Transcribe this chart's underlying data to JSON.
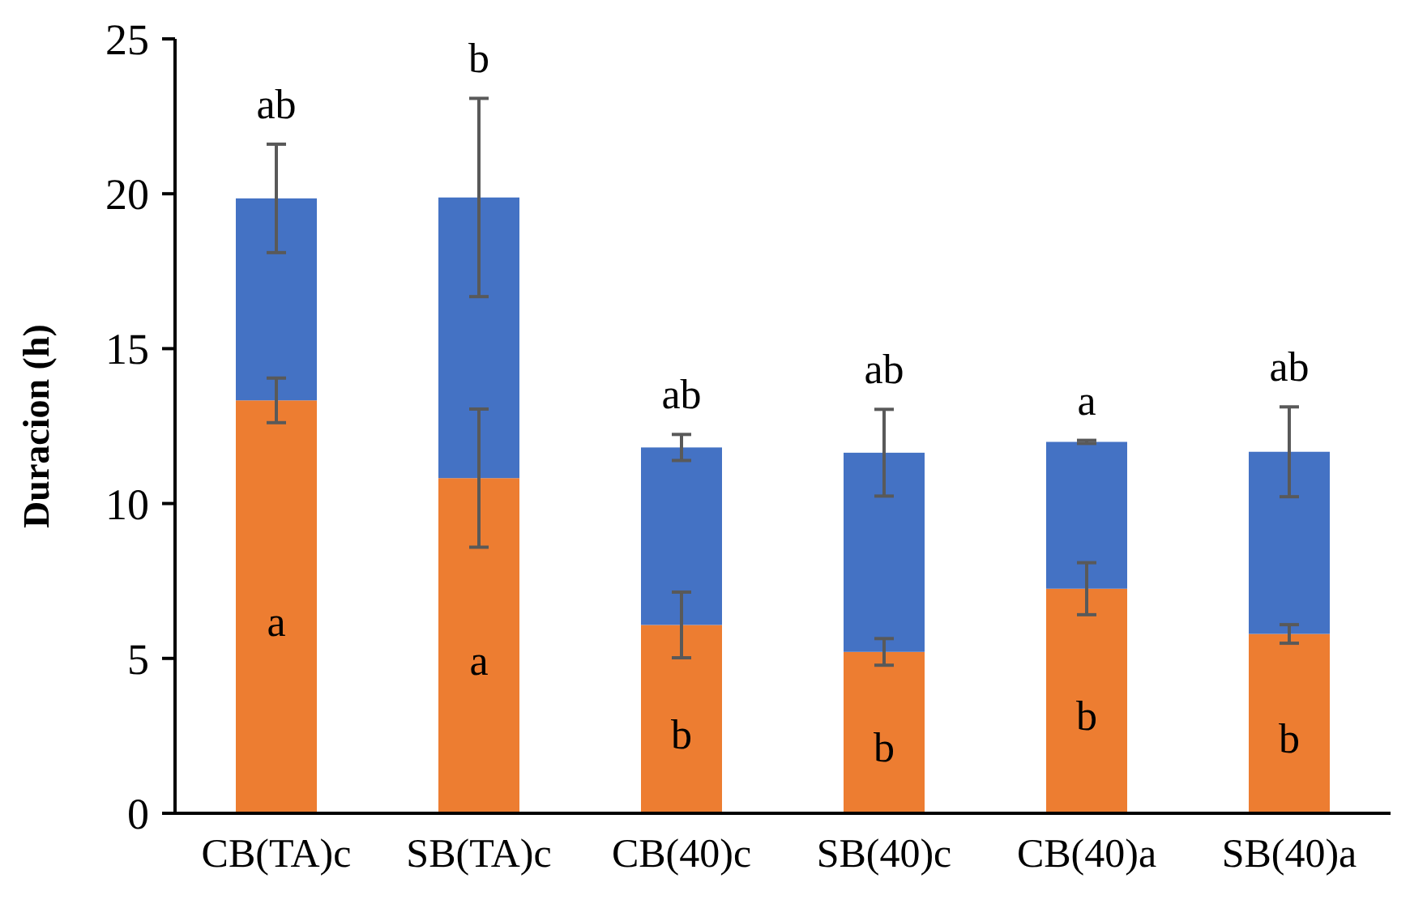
{
  "chart_data": {
    "type": "bar",
    "stacked": true,
    "ylabel": "Duracion (h)",
    "categories": [
      "CB(TA)c",
      "SB(TA)c",
      "CB(40)c",
      "SB(40)c",
      "CB(40)a",
      "SB(40)a"
    ],
    "series": [
      {
        "color": "#ed7d31",
        "values": [
          13.33,
          10.82,
          6.08,
          5.21,
          7.25,
          5.79
        ],
        "errors": [
          0.72,
          2.23,
          1.06,
          0.43,
          0.84,
          0.3
        ],
        "value_labels": [
          "a",
          "a",
          "b",
          "b",
          "b",
          "b"
        ]
      },
      {
        "color": "#4472c4",
        "values": [
          6.52,
          9.06,
          5.73,
          6.43,
          4.74,
          5.88
        ],
        "errors": [
          1.75,
          3.2,
          0.42,
          1.4,
          0.05,
          1.45
        ],
        "value_labels": [
          "ab",
          "b",
          "ab",
          "ab",
          "a",
          "ab"
        ]
      }
    ],
    "ylim": [
      0,
      25
    ],
    "yticks": [
      0,
      5,
      10,
      15,
      20,
      25
    ],
    "grid": false
  }
}
